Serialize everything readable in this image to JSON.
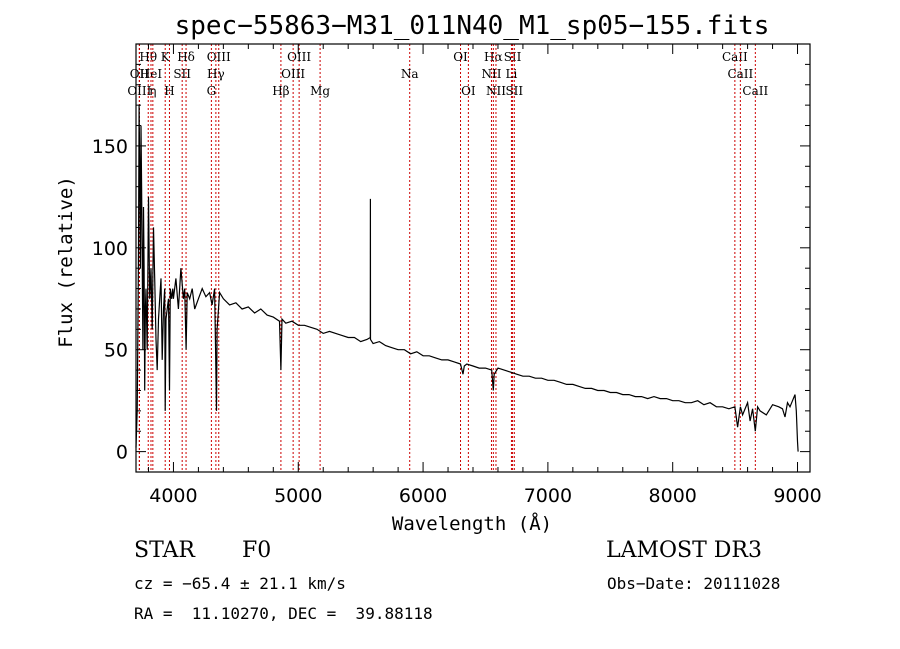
{
  "chart_data": {
    "type": "line",
    "title": "spec−55863−M31_011N40_M1_sp05−155.fits",
    "xlabel": "Wavelength (Å)",
    "ylabel": "Flux (relative)",
    "xlim": [
      3700,
      9100
    ],
    "ylim": [
      -10,
      200
    ],
    "xticks": [
      4000,
      5000,
      6000,
      7000,
      8000,
      9000
    ],
    "yticks": [
      0,
      50,
      100,
      150
    ],
    "series": [
      {
        "name": "flux",
        "x": [
          3700,
          3710,
          3715,
          3720,
          3725,
          3730,
          3735,
          3740,
          3745,
          3750,
          3755,
          3760,
          3765,
          3770,
          3775,
          3780,
          3790,
          3800,
          3810,
          3820,
          3830,
          3840,
          3850,
          3860,
          3870,
          3880,
          3890,
          3900,
          3910,
          3920,
          3930,
          3934,
          3940,
          3950,
          3960,
          3968,
          3975,
          3985,
          3995,
          4000,
          4020,
          4040,
          4060,
          4080,
          4090,
          4101,
          4110,
          4130,
          4150,
          4170,
          4200,
          4230,
          4260,
          4290,
          4310,
          4330,
          4340,
          4345,
          4350,
          4370,
          4400,
          4450,
          4500,
          4550,
          4600,
          4650,
          4700,
          4750,
          4800,
          4850,
          4861,
          4870,
          4900,
          4950,
          5000,
          5050,
          5100,
          5150,
          5200,
          5250,
          5300,
          5350,
          5400,
          5450,
          5500,
          5550,
          5577,
          5578,
          5579,
          5600,
          5650,
          5700,
          5750,
          5800,
          5850,
          5900,
          5950,
          6000,
          6050,
          6100,
          6150,
          6200,
          6250,
          6300,
          6320,
          6330,
          6350,
          6400,
          6450,
          6500,
          6550,
          6563,
          6570,
          6600,
          6650,
          6700,
          6750,
          6800,
          6850,
          6900,
          6950,
          7000,
          7050,
          7100,
          7150,
          7200,
          7250,
          7300,
          7350,
          7400,
          7450,
          7500,
          7550,
          7600,
          7650,
          7700,
          7750,
          7800,
          7850,
          7900,
          7950,
          8000,
          8050,
          8100,
          8150,
          8200,
          8250,
          8300,
          8350,
          8400,
          8450,
          8498,
          8520,
          8542,
          8560,
          8600,
          8620,
          8640,
          8662,
          8680,
          8700,
          8750,
          8800,
          8850,
          8880,
          8900,
          8920,
          8940,
          8960,
          8980,
          8990,
          9000,
          9005
        ],
        "values": [
          2,
          20,
          60,
          100,
          170,
          140,
          90,
          160,
          130,
          95,
          50,
          120,
          90,
          30,
          70,
          80,
          50,
          125,
          75,
          90,
          60,
          110,
          85,
          55,
          40,
          65,
          75,
          85,
          45,
          70,
          80,
          20,
          65,
          70,
          75,
          30,
          80,
          75,
          80,
          75,
          85,
          70,
          90,
          75,
          80,
          50,
          78,
          75,
          80,
          70,
          75,
          80,
          76,
          78,
          72,
          80,
          40,
          20,
          60,
          78,
          75,
          72,
          73,
          70,
          71,
          68,
          70,
          67,
          66,
          64,
          40,
          65,
          63,
          64,
          62,
          62,
          61,
          60,
          58,
          59,
          58,
          57,
          56,
          56,
          54,
          55,
          56,
          124,
          55,
          53,
          54,
          52,
          51,
          50,
          50,
          48,
          49,
          47,
          47,
          46,
          45,
          45,
          44,
          43,
          38,
          42,
          43,
          42,
          41,
          41,
          40,
          30,
          38,
          41,
          40,
          39,
          38,
          37,
          37,
          36,
          36,
          35,
          35,
          34,
          33,
          33,
          32,
          31,
          31,
          30,
          30,
          29,
          29,
          28,
          28,
          27,
          27,
          26,
          27,
          26,
          26,
          25,
          25,
          24,
          24,
          25,
          23,
          24,
          22,
          22,
          21,
          22,
          12,
          22,
          18,
          24,
          15,
          21,
          10,
          22,
          20,
          18,
          23,
          22,
          21,
          17,
          24,
          22,
          25,
          28,
          20,
          5,
          0
        ]
      }
    ],
    "lines": [
      {
        "label": "OII",
        "wl": 3727,
        "row": 1
      },
      {
        "label": "OIII",
        "wl": 3727,
        "row": 2
      },
      {
        "label": "Hθ",
        "wl": 3798,
        "row": 0
      },
      {
        "label": "HeI",
        "wl": 3820,
        "row": 1
      },
      {
        "label": "η",
        "wl": 3835,
        "row": 2
      },
      {
        "label": "K",
        "wl": 3934,
        "row": 0
      },
      {
        "label": "H",
        "wl": 3968,
        "row": 2
      },
      {
        "label": "SII",
        "wl": 4070,
        "row": 1
      },
      {
        "label": "Hδ",
        "wl": 4101,
        "row": 0
      },
      {
        "label": "OIII",
        "wl": 4363,
        "row": 0
      },
      {
        "label": "Hγ",
        "wl": 4340,
        "row": 1
      },
      {
        "label": "G",
        "wl": 4304,
        "row": 2
      },
      {
        "label": "Hβ",
        "wl": 4861,
        "row": 2
      },
      {
        "label": "OIII",
        "wl": 5007,
        "row": 0
      },
      {
        "label": "OIII",
        "wl": 4959,
        "row": 1
      },
      {
        "label": "Mg",
        "wl": 5175,
        "row": 2
      },
      {
        "label": "Na",
        "wl": 5893,
        "row": 1
      },
      {
        "label": "OI",
        "wl": 6300,
        "row": 0
      },
      {
        "label": "OI",
        "wl": 6363,
        "row": 2
      },
      {
        "label": "Hα",
        "wl": 6563,
        "row": 0
      },
      {
        "label": "SII",
        "wl": 6717,
        "row": 0
      },
      {
        "label": "NII",
        "wl": 6548,
        "row": 1
      },
      {
        "label": "Li",
        "wl": 6708,
        "row": 1
      },
      {
        "label": "NII",
        "wl": 6584,
        "row": 2
      },
      {
        "label": "SII",
        "wl": 6731,
        "row": 2
      },
      {
        "label": "CaII",
        "wl": 8498,
        "row": 0
      },
      {
        "label": "CaII",
        "wl": 8542,
        "row": 1
      },
      {
        "label": "CaII",
        "wl": 8662,
        "row": 2
      }
    ]
  },
  "info": {
    "object_class": "STAR",
    "subclass": "F0",
    "survey": "LAMOST DR3",
    "cz": "cz = −65.4 ± 21.1 km/s",
    "obs_date": "Obs−Date: 20111028",
    "coords": "RA =  11.10270, DEC =  39.88118"
  }
}
